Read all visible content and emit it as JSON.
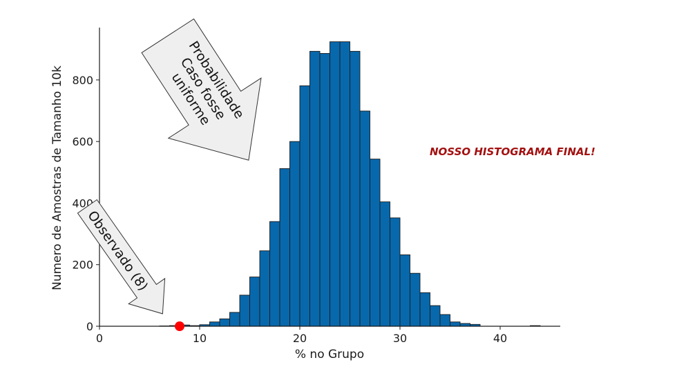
{
  "chart_data": {
    "type": "bar",
    "xlabel": "% no Grupo",
    "ylabel": "Numero de Amostras de Tamanho 10k",
    "xlim": [
      0,
      46
    ],
    "ylim": [
      0,
      970
    ],
    "xticks": [
      0,
      10,
      20,
      30,
      40
    ],
    "yticks": [
      0,
      200,
      400,
      600,
      800
    ],
    "bar_color": "#0868ac",
    "bar_edge_color": "#1a1a1a",
    "bin_width": 1,
    "bins": [
      {
        "x": 6.5,
        "y": 1
      },
      {
        "x": 7.5,
        "y": 2
      },
      {
        "x": 8.5,
        "y": 4
      },
      {
        "x": 9.5,
        "y": 2
      },
      {
        "x": 10.5,
        "y": 5
      },
      {
        "x": 11.5,
        "y": 14
      },
      {
        "x": 12.5,
        "y": 24
      },
      {
        "x": 13.5,
        "y": 45
      },
      {
        "x": 14.5,
        "y": 101
      },
      {
        "x": 15.5,
        "y": 160
      },
      {
        "x": 16.5,
        "y": 245
      },
      {
        "x": 17.5,
        "y": 340
      },
      {
        "x": 18.5,
        "y": 512
      },
      {
        "x": 19.5,
        "y": 600
      },
      {
        "x": 20.5,
        "y": 781
      },
      {
        "x": 21.5,
        "y": 893
      },
      {
        "x": 22.5,
        "y": 886
      },
      {
        "x": 23.5,
        "y": 924
      },
      {
        "x": 24.5,
        "y": 924
      },
      {
        "x": 25.5,
        "y": 893
      },
      {
        "x": 26.5,
        "y": 699
      },
      {
        "x": 27.5,
        "y": 543
      },
      {
        "x": 28.5,
        "y": 404
      },
      {
        "x": 29.5,
        "y": 352
      },
      {
        "x": 30.5,
        "y": 232
      },
      {
        "x": 31.5,
        "y": 172
      },
      {
        "x": 32.5,
        "y": 109
      },
      {
        "x": 33.5,
        "y": 67
      },
      {
        "x": 34.5,
        "y": 38
      },
      {
        "x": 35.5,
        "y": 14
      },
      {
        "x": 36.5,
        "y": 9
      },
      {
        "x": 37.5,
        "y": 6
      },
      {
        "x": 43.5,
        "y": 2
      }
    ],
    "observed_point": {
      "x": 8,
      "y": 0,
      "color": "#ff0000"
    },
    "annotations": {
      "uniform": "Probabilidade\nCaso fosse\nuniforme",
      "observed": "Observado (8)",
      "final": "NOSSO HISTOGRAMA FINAL!"
    }
  }
}
